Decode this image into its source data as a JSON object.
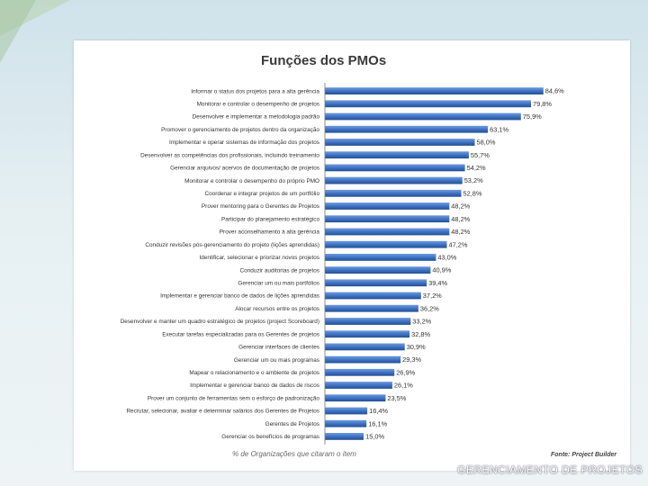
{
  "slide": {
    "footer": "GERENCIAMENTO DE PROJETOS",
    "accent_color": "#2e63b0",
    "ornament_color": "#a9c7a0"
  },
  "chart_data": {
    "type": "bar",
    "orientation": "horizontal",
    "title": "Funções dos PMOs",
    "xlabel": "% de Organizações que citaram o item",
    "source": "Fonte: Project Builder",
    "xlim": [
      0,
      100
    ],
    "grid": false,
    "legend": "none",
    "categories": [
      "Informar o status dos projetos para a alta gerência",
      "Monitorar e controlar o desempenho de projetos",
      "Desenvolver e implementar a metodologia padrão",
      "Promover o gerenciamento de projetos dentro da organização",
      "Implementar e operar sistemas de informação dos projetos",
      "Desenvolver as competências dos profissionais, incluindo treinamento",
      "Gerenciar arquivos/ acervos de documentação de projetos",
      "Monitorar e controlar o desempenho do próprio PMO",
      "Coordenar e integrar projetos de um portfólio",
      "Prover mentoring para o Gerentes de Projetos",
      "Participar do planejamento estratégico",
      "Prover aconselhamento à alta gerência",
      "Conduzir revisões pós-gerenciamento do projeto (lições aprendidas)",
      "Identificar, selecionar e priorizar novos projetos",
      "Conduzir auditorias de projetos",
      "Gerenciar um ou mais portfólios",
      "Implementar e gerenciar banco de dados de lições aprendidas",
      "Alocar recursos entre os projetos",
      "Desenvolver e manter um quadro estratégico de projetos (project Scoreboard)",
      "Executar tarefas especializadas para os Gerentes de projetos",
      "Gerenciar interfaces de clientes",
      "Gerenciar um ou mais programas",
      "Mapear o relacionamento e o ambiente de projetos",
      "Implementar e gerenciar banco de dados de riscos",
      "Prover um conjunto de ferramentas sem o esforço de padronização",
      "Recrutar, selecionar, avaliar e determinar salários dos Gerentes de Projetos",
      "Gerentes de Projetos",
      "Gerenciar os benefícios de programas"
    ],
    "values": [
      84.6,
      79.8,
      75.9,
      63.1,
      58.0,
      55.7,
      54.2,
      53.2,
      52.8,
      48.2,
      48.2,
      48.2,
      47.2,
      43.0,
      40.9,
      39.4,
      37.2,
      36.2,
      33.2,
      32.8,
      30.9,
      29.3,
      26.9,
      26.1,
      23.5,
      16.4,
      16.1,
      15.0
    ],
    "value_labels": [
      "84,6%",
      "79,8%",
      "75,9%",
      "63,1%",
      "58,0%",
      "55,7%",
      "54,2%",
      "53,2%",
      "52,8%",
      "48,2%",
      "48,2%",
      "48,2%",
      "47,2%",
      "43,0%",
      "40,9%",
      "39,4%",
      "37,2%",
      "36,2%",
      "33,2%",
      "32,8%",
      "30,9%",
      "29,3%",
      "26,9%",
      "26,1%",
      "23,5%",
      "16,4%",
      "16,1%",
      "15,0%"
    ],
    "bar_color": "#3b6fc0"
  }
}
